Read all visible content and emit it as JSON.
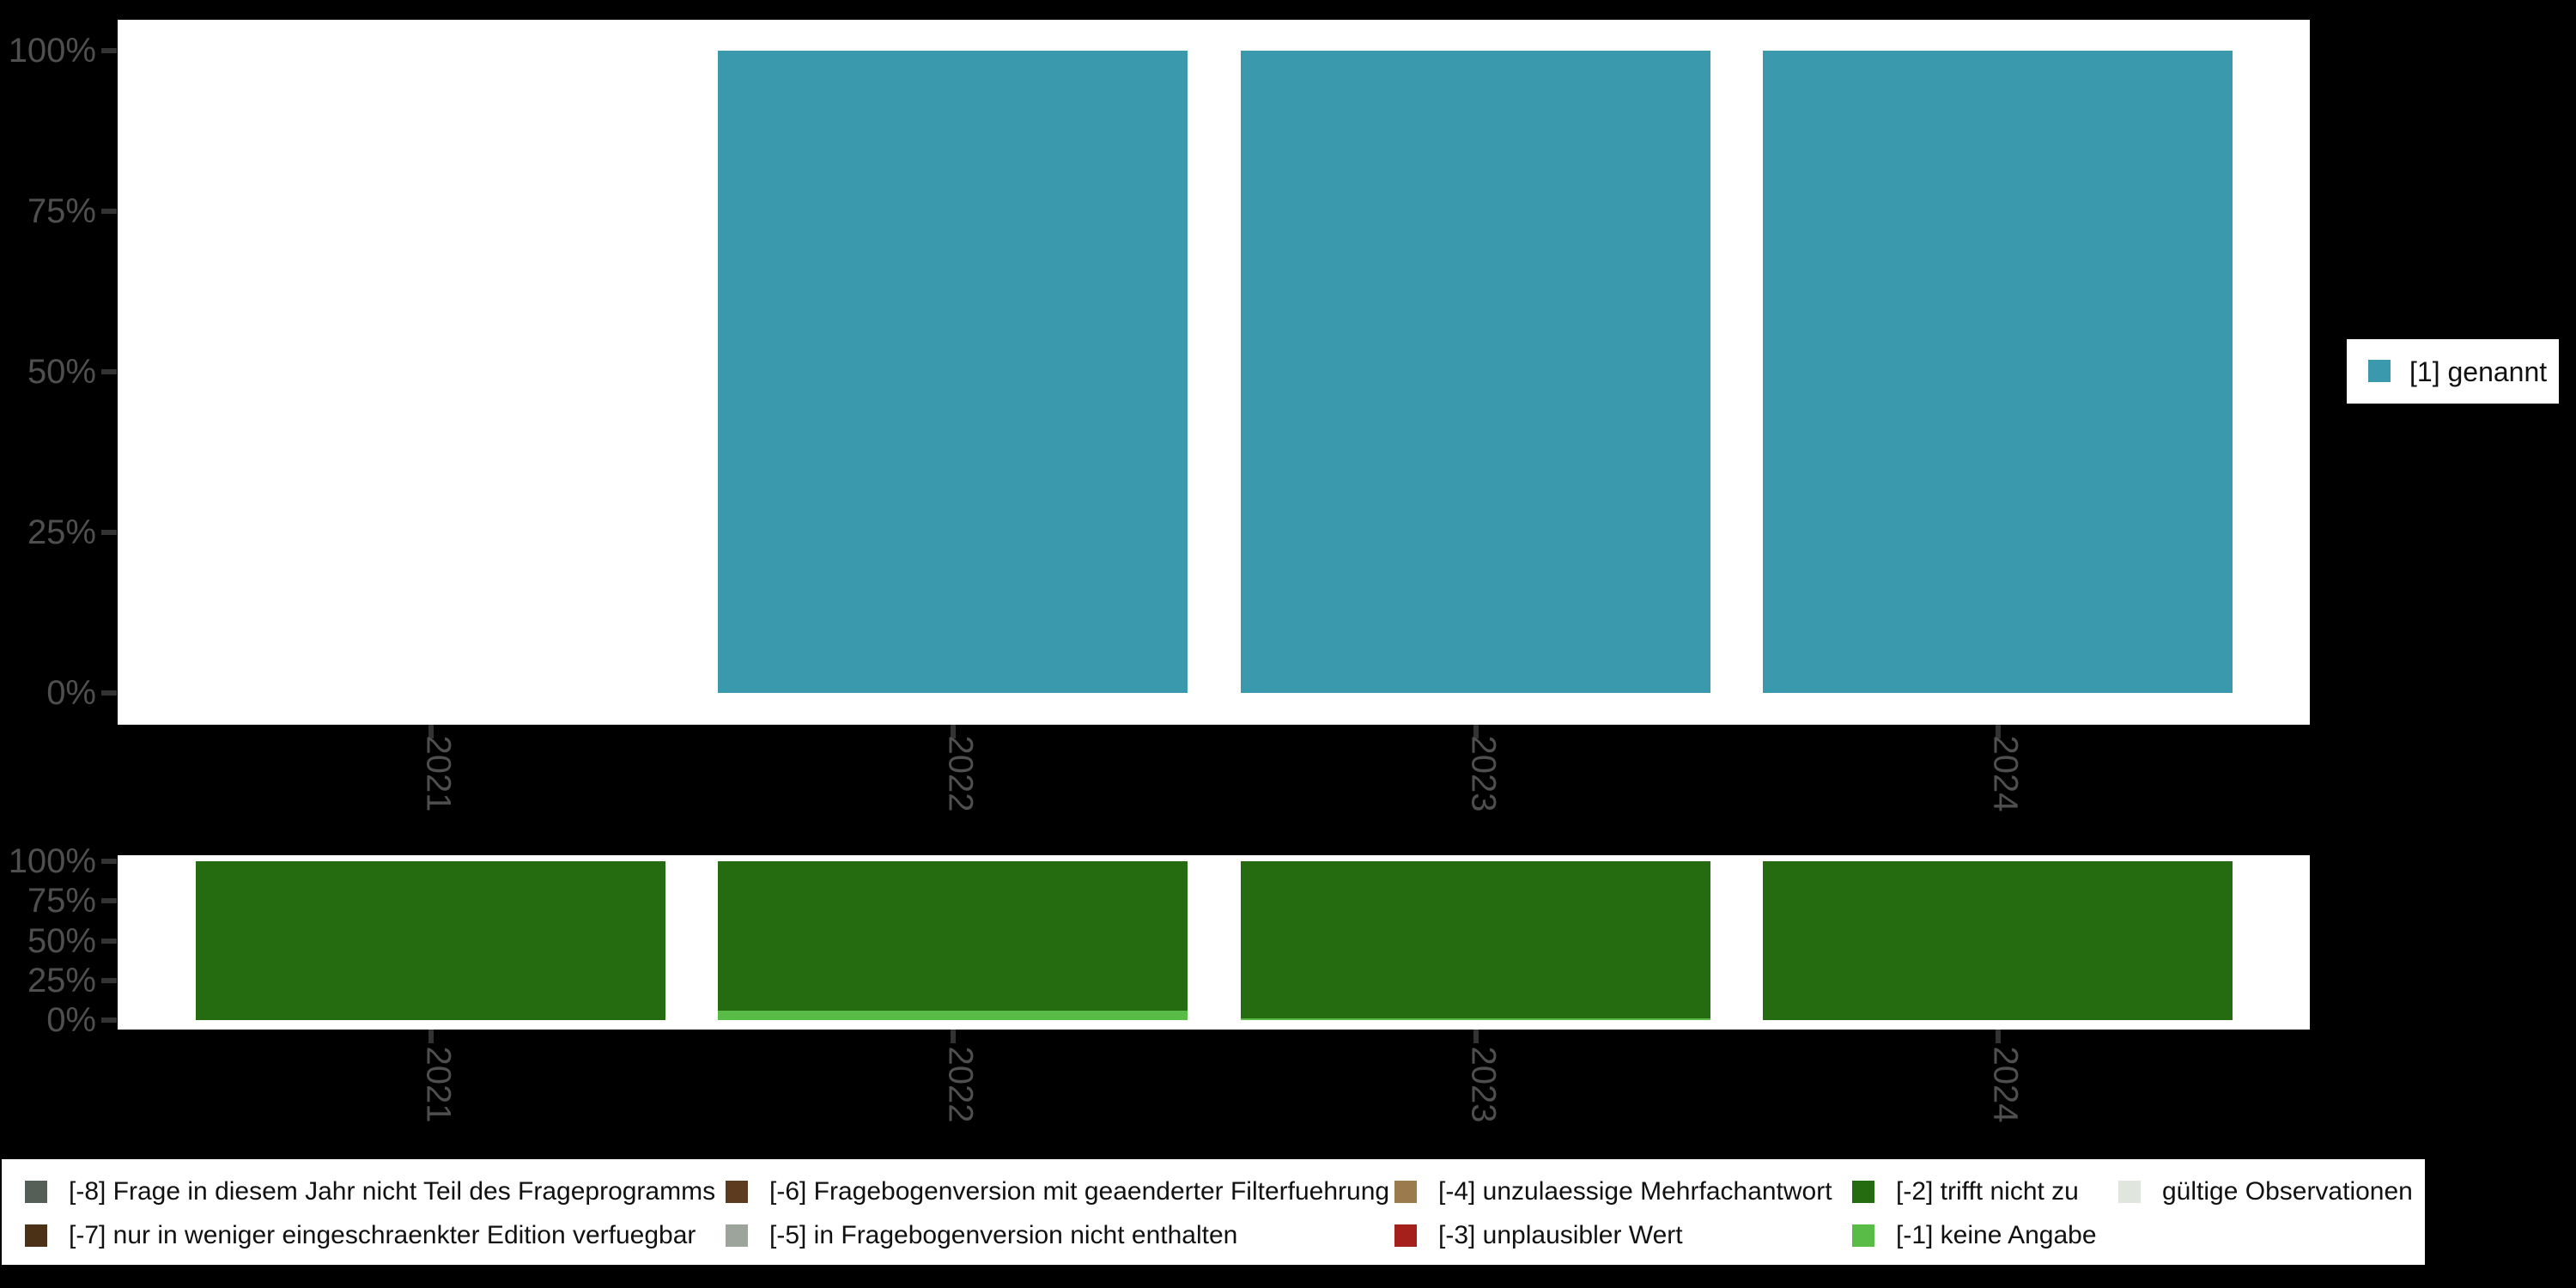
{
  "page": {
    "background_color": "#000000",
    "plot_background_color": "#ffffff",
    "axis_text_color": "#4f4f4f",
    "tick_color": "#333333"
  },
  "chart_data": [
    {
      "id": "valid-values-chart",
      "type": "bar",
      "stacked": true,
      "orientation": "vertical",
      "title": "",
      "xlabel": "",
      "ylabel": "",
      "categories": [
        "2021",
        "2022",
        "2023",
        "2024"
      ],
      "series": [
        {
          "name": "[1] genannt",
          "color": "#3b99ae",
          "values": [
            null,
            100,
            100,
            100
          ]
        }
      ],
      "ylim": [
        0,
        100
      ],
      "yticks": [
        {
          "v": 0,
          "label": "0%"
        },
        {
          "v": 25,
          "label": "25%"
        },
        {
          "v": 50,
          "label": "50%"
        },
        {
          "v": 75,
          "label": "75%"
        },
        {
          "v": 100,
          "label": "100%"
        }
      ],
      "grid": false,
      "legend_position": "right"
    },
    {
      "id": "missing-values-chart",
      "type": "bar",
      "stacked": true,
      "stack_order": "bottom-to-top",
      "orientation": "vertical",
      "title": "",
      "xlabel": "",
      "ylabel": "",
      "categories": [
        "2021",
        "2022",
        "2023",
        "2024"
      ],
      "series": [
        {
          "name": "[-1] keine Angabe",
          "color": "#58bc46",
          "values": [
            0,
            6,
            1,
            0
          ]
        },
        {
          "name": "[-2] trifft nicht zu",
          "color": "#256c10",
          "values": [
            100,
            94,
            99,
            100
          ]
        }
      ],
      "ylim": [
        0,
        100
      ],
      "yticks": [
        {
          "v": 0,
          "label": "0%"
        },
        {
          "v": 25,
          "label": "25%"
        },
        {
          "v": 50,
          "label": "50%"
        },
        {
          "v": 75,
          "label": "75%"
        },
        {
          "v": 100,
          "label": "100%"
        }
      ],
      "grid": false,
      "legend_position": "bottom"
    }
  ],
  "legend_right": {
    "items": [
      {
        "label": "[1] genannt",
        "color": "#3b99ae"
      }
    ]
  },
  "legend_bottom": {
    "columns": [
      {
        "items": [
          {
            "label": "[-8] Frage in diesem Jahr nicht Teil des Frageprogramms",
            "color": "#565f57"
          },
          {
            "label": "[-7] nur in weniger eingeschraenkter Edition verfuegbar",
            "color": "#4b3116"
          }
        ]
      },
      {
        "items": [
          {
            "label": "[-6] Fragebogenversion mit geaenderter Filterfuehrung",
            "color": "#5d3b1e"
          },
          {
            "label": "[-5] in Fragebogenversion nicht enthalten",
            "color": "#9ca49b"
          }
        ]
      },
      {
        "items": [
          {
            "label": "[-4] unzulaessige Mehrfachantwort",
            "color": "#9b7b4e"
          },
          {
            "label": "[-3] unplausibler Wert",
            "color": "#a6201b"
          }
        ]
      },
      {
        "items": [
          {
            "label": "[-2] trifft nicht zu",
            "color": "#256c10"
          },
          {
            "label": "[-1] keine Angabe",
            "color": "#58bc46"
          }
        ]
      },
      {
        "items": [
          {
            "label": "gültige Observationen",
            "color": "#e0e5dd"
          }
        ]
      }
    ]
  }
}
